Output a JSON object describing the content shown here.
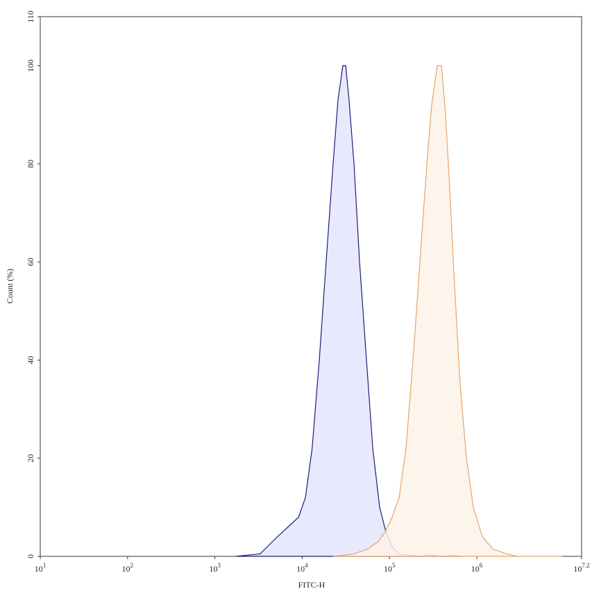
{
  "chart_data": {
    "type": "area",
    "x_label": "FITC-H",
    "y_label": "Count (%)",
    "xscale": "log",
    "xlim": [
      10,
      15848931.92
    ],
    "xticks": [
      {
        "value": 10,
        "label": "10",
        "exponent": "1"
      },
      {
        "value": 100,
        "label": "10",
        "exponent": "2"
      },
      {
        "value": 1000,
        "label": "10",
        "exponent": "3"
      },
      {
        "value": 10000,
        "label": "10",
        "exponent": "4"
      },
      {
        "value": 100000,
        "label": "10",
        "exponent": "5"
      },
      {
        "value": 1000000,
        "label": "10",
        "exponent": "6"
      },
      {
        "value": 15848931.92,
        "label": "10",
        "exponent": "7.2"
      }
    ],
    "ylim": [
      0,
      110
    ],
    "yticks": [
      0,
      20,
      40,
      60,
      80,
      100,
      110
    ],
    "series": [
      {
        "color": "#1c1c78",
        "fill": "#e4e5fb",
        "x": [
          1750,
          3300,
          4000,
          5200,
          6900,
          9100,
          10900,
          13000,
          15700,
          18800,
          22600,
          25700,
          29200,
          31500,
          34400,
          39200,
          45400,
          54500,
          64300,
          77100,
          90900,
          107200,
          128800,
          169400,
          222800,
          293100,
          386300,
          508200,
          668400
        ],
        "values": [
          0,
          0.5,
          2,
          4,
          6,
          8,
          12,
          22,
          40,
          60,
          80,
          93,
          100,
          100,
          93,
          80,
          60,
          40,
          22,
          10,
          5,
          2,
          0.5,
          0.2,
          0,
          0.3,
          0,
          0.2,
          0
        ]
      },
      {
        "color": "#e8a368",
        "fill": "#fdf2e7",
        "x": [
          22650,
          39170,
          56490,
          74300,
          89330,
          107200,
          128800,
          154500,
          185800,
          222800,
          267900,
          304100,
          352300,
          393600,
          438500,
          489800,
          557100,
          644200,
          760300,
          912000,
          1158000,
          1524000,
          2198000,
          2891000,
          9506000
        ],
        "values": [
          0,
          0.5,
          1.5,
          3,
          5,
          8,
          12,
          22,
          40,
          60,
          80,
          92,
          100,
          100,
          90,
          75,
          55,
          35,
          20,
          10,
          4,
          1.5,
          0.5,
          0,
          0
        ]
      }
    ]
  }
}
